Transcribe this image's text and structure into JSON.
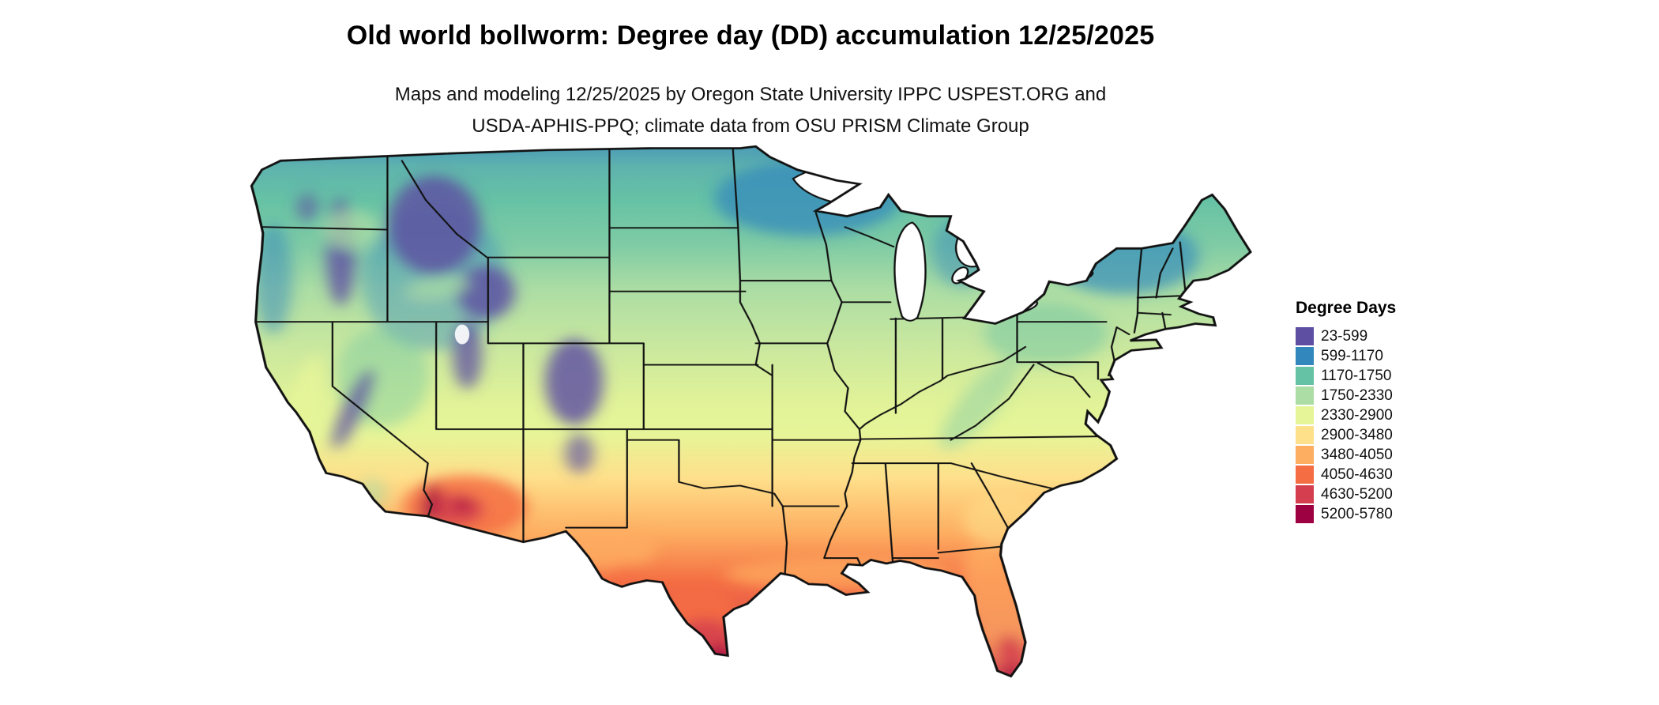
{
  "title": "Old world bollworm: Degree day (DD) accumulation 12/25/2025",
  "subtitle_line1": "Maps and modeling 12/25/2025 by Oregon State University IPPC USPEST.ORG and",
  "subtitle_line2": "USDA-APHIS-PPQ; climate data from OSU PRISM Climate Group",
  "map": {
    "description": "Continental United States raster map of accumulated degree days with state borders"
  },
  "legend": {
    "title": "Degree Days",
    "items": [
      {
        "label": "23-599",
        "color": "#5e4fa2"
      },
      {
        "label": "599-1170",
        "color": "#3288bd"
      },
      {
        "label": "1170-1750",
        "color": "#66c2a5"
      },
      {
        "label": "1750-2330",
        "color": "#abdda4"
      },
      {
        "label": "2330-2900",
        "color": "#e6f598"
      },
      {
        "label": "2900-3480",
        "color": "#fee08b"
      },
      {
        "label": "3480-4050",
        "color": "#fdae61"
      },
      {
        "label": "4050-4630",
        "color": "#f46d43"
      },
      {
        "label": "4630-5200",
        "color": "#d53e4f"
      },
      {
        "label": "5200-5780",
        "color": "#9e0142"
      }
    ]
  }
}
